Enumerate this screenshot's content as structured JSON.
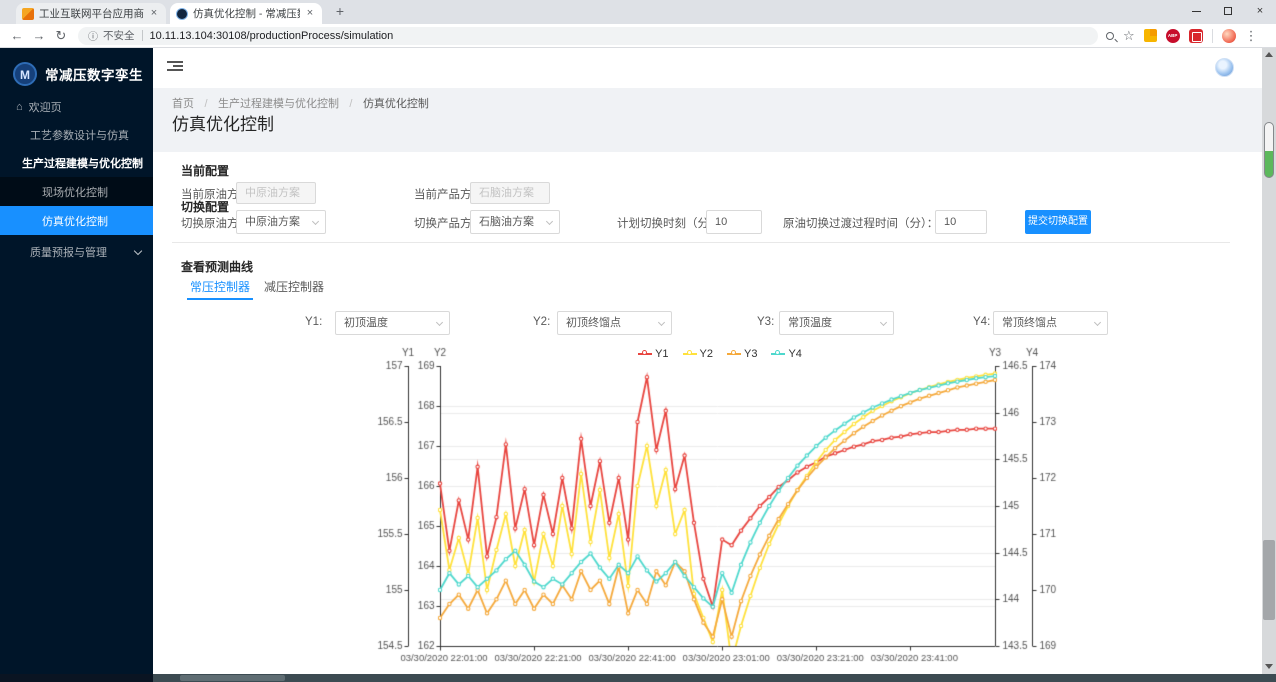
{
  "browser": {
    "tabs": [
      {
        "title": "工业互联网平台应用商店"
      },
      {
        "title": "仿真优化控制 - 常减压数字孪生"
      }
    ],
    "security_label": "不安全",
    "url": "10.11.13.104:30108/productionProcess/simulation",
    "extension_abp_label": "ABP"
  },
  "sidebar": {
    "brand": "常减压数字孪生",
    "logo_letter": "M",
    "items": [
      {
        "label": "欢迎页"
      },
      {
        "label": "工艺参数设计与仿真"
      },
      {
        "label": "生产过程建模与优化控制"
      },
      {
        "label": "现场优化控制"
      },
      {
        "label": "仿真优化控制"
      },
      {
        "label": "质量预报与管理"
      }
    ]
  },
  "breadcrumb": {
    "items": [
      "首页",
      "生产过程建模与优化控制",
      "仿真优化控制"
    ],
    "separator": "/"
  },
  "page_title": "仿真优化控制",
  "config": {
    "current_title": "当前配置",
    "current_oil_label": "当前原油方案：",
    "current_oil_value": "中原油方案",
    "current_product_label": "当前产品方案：",
    "current_product_value": "石脑油方案",
    "switch_title": "切换配置",
    "switch_oil_label": "切换原油方案：",
    "switch_oil_value": "中原油方案",
    "switch_product_label": "切换产品方案：",
    "switch_product_value": "石脑油方案",
    "plan_time_label": "计划切换时刻（分）：",
    "plan_time_value": "10",
    "transition_time_label": "原油切换过渡过程时间（分）：",
    "transition_time_value": "10",
    "submit_label": "提交切换配置"
  },
  "curves": {
    "title": "查看预测曲线",
    "tabs": [
      {
        "label": "常压控制器"
      },
      {
        "label": "减压控制器"
      }
    ],
    "selectors": [
      {
        "label": "Y1:",
        "value": "初顶温度"
      },
      {
        "label": "Y2:",
        "value": "初顶终馏点"
      },
      {
        "label": "Y3:",
        "value": "常顶温度"
      },
      {
        "label": "Y4:",
        "value": "常顶终馏点"
      }
    ]
  },
  "chart_data": {
    "type": "line",
    "x_minutes": [
      0,
      2,
      4,
      6,
      8,
      10,
      12,
      14,
      16,
      18,
      20,
      22,
      24,
      26,
      28,
      30,
      32,
      34,
      36,
      38,
      40,
      42,
      44,
      46,
      48,
      50,
      52,
      54,
      56,
      58,
      60,
      62,
      64,
      66,
      68,
      70,
      72,
      74,
      76,
      78,
      80,
      82,
      84,
      86,
      88,
      90,
      92,
      94,
      96,
      98,
      100,
      102,
      104,
      106,
      108,
      110,
      112,
      114,
      116,
      118
    ],
    "x_tick_minutes": [
      0,
      20,
      40,
      60,
      80,
      100
    ],
    "x_tick_labels": [
      "03/30/2020 22:01:00",
      "03/30/2020 22:21:00",
      "03/30/2020 22:41:00",
      "03/30/2020 23:01:00",
      "03/30/2020 23:21:00",
      "03/30/2020 23:41:00"
    ],
    "grid": true,
    "legend_position": "top",
    "axes": [
      {
        "name": "Y1",
        "min": 154.5,
        "max": 157,
        "tick": 0.5,
        "side": "left-outer"
      },
      {
        "name": "Y2",
        "min": 162,
        "max": 169,
        "tick": 1,
        "side": "left-inner"
      },
      {
        "name": "Y3",
        "min": 143.5,
        "max": 146.5,
        "tick": 0.5,
        "side": "right-inner"
      },
      {
        "name": "Y4",
        "min": 169,
        "max": 174,
        "tick": 1,
        "side": "right-outer"
      }
    ],
    "series": [
      {
        "name": "Y1",
        "color": "#e8453f",
        "axis": 0,
        "values": [
          155.95,
          155.35,
          155.8,
          155.45,
          156.1,
          155.3,
          155.65,
          156.3,
          155.55,
          155.9,
          155.4,
          155.85,
          155.5,
          156.0,
          155.55,
          156.35,
          155.75,
          156.15,
          155.6,
          156.0,
          155.45,
          156.5,
          156.9,
          156.25,
          156.6,
          155.9,
          156.2,
          155.6,
          155.1,
          154.85,
          155.45,
          155.4,
          155.53,
          155.64,
          155.75,
          155.83,
          155.92,
          155.98,
          156.05,
          156.1,
          156.14,
          156.19,
          156.22,
          156.25,
          156.28,
          156.3,
          156.33,
          156.34,
          156.36,
          156.37,
          156.39,
          156.4,
          156.41,
          156.41,
          156.42,
          156.43,
          156.43,
          156.44,
          156.44,
          156.44
        ]
      },
      {
        "name": "Y2",
        "color": "#ffe13b",
        "axis": 1,
        "values": [
          165.4,
          163.9,
          164.7,
          163.8,
          165.2,
          163.4,
          164.4,
          165.3,
          164.0,
          164.9,
          163.6,
          164.8,
          164.0,
          165.5,
          164.3,
          166.3,
          164.6,
          165.9,
          164.2,
          165.3,
          163.5,
          166.0,
          167.0,
          165.5,
          166.4,
          164.8,
          165.4,
          163.3,
          162.7,
          162.1,
          163.4,
          161.6,
          162.5,
          163.25,
          163.95,
          164.55,
          165.05,
          165.5,
          165.9,
          166.25,
          166.6,
          166.9,
          167.15,
          167.35,
          167.55,
          167.72,
          167.88,
          168.0,
          168.12,
          168.22,
          168.32,
          168.4,
          168.47,
          168.54,
          168.6,
          168.65,
          168.7,
          168.74,
          168.78,
          168.81
        ]
      },
      {
        "name": "Y3",
        "color": "#f5a93b",
        "axis": 2,
        "values": [
          143.8,
          143.95,
          144.05,
          143.9,
          144.1,
          143.85,
          144.0,
          144.2,
          143.95,
          144.1,
          143.9,
          144.05,
          143.95,
          144.15,
          144.0,
          144.3,
          144.1,
          144.2,
          143.95,
          144.35,
          143.85,
          144.1,
          143.95,
          144.3,
          144.15,
          144.4,
          144.3,
          144.0,
          143.75,
          143.6,
          144.0,
          143.6,
          143.98,
          144.25,
          144.48,
          144.68,
          144.86,
          145.02,
          145.17,
          145.3,
          145.42,
          145.52,
          145.62,
          145.7,
          145.78,
          145.85,
          145.91,
          145.97,
          146.02,
          146.07,
          146.11,
          146.15,
          146.18,
          146.21,
          146.24,
          146.27,
          146.29,
          146.31,
          146.33,
          146.35
        ]
      },
      {
        "name": "Y4",
        "color": "#4ed8cd",
        "axis": 3,
        "values": [
          170.0,
          170.3,
          170.1,
          170.25,
          170.05,
          170.2,
          170.35,
          170.55,
          170.7,
          170.45,
          170.15,
          170.05,
          170.2,
          170.1,
          170.3,
          170.5,
          170.65,
          170.4,
          170.2,
          170.45,
          170.3,
          170.6,
          170.35,
          170.15,
          170.3,
          170.5,
          170.25,
          170.05,
          169.85,
          169.7,
          170.3,
          169.95,
          170.45,
          170.85,
          171.2,
          171.5,
          171.77,
          172.0,
          172.22,
          172.4,
          172.57,
          172.72,
          172.85,
          172.97,
          173.08,
          173.17,
          173.26,
          173.33,
          173.4,
          173.46,
          173.52,
          173.57,
          173.61,
          173.65,
          173.69,
          173.72,
          173.75,
          173.78,
          173.8,
          173.82
        ]
      }
    ]
  }
}
